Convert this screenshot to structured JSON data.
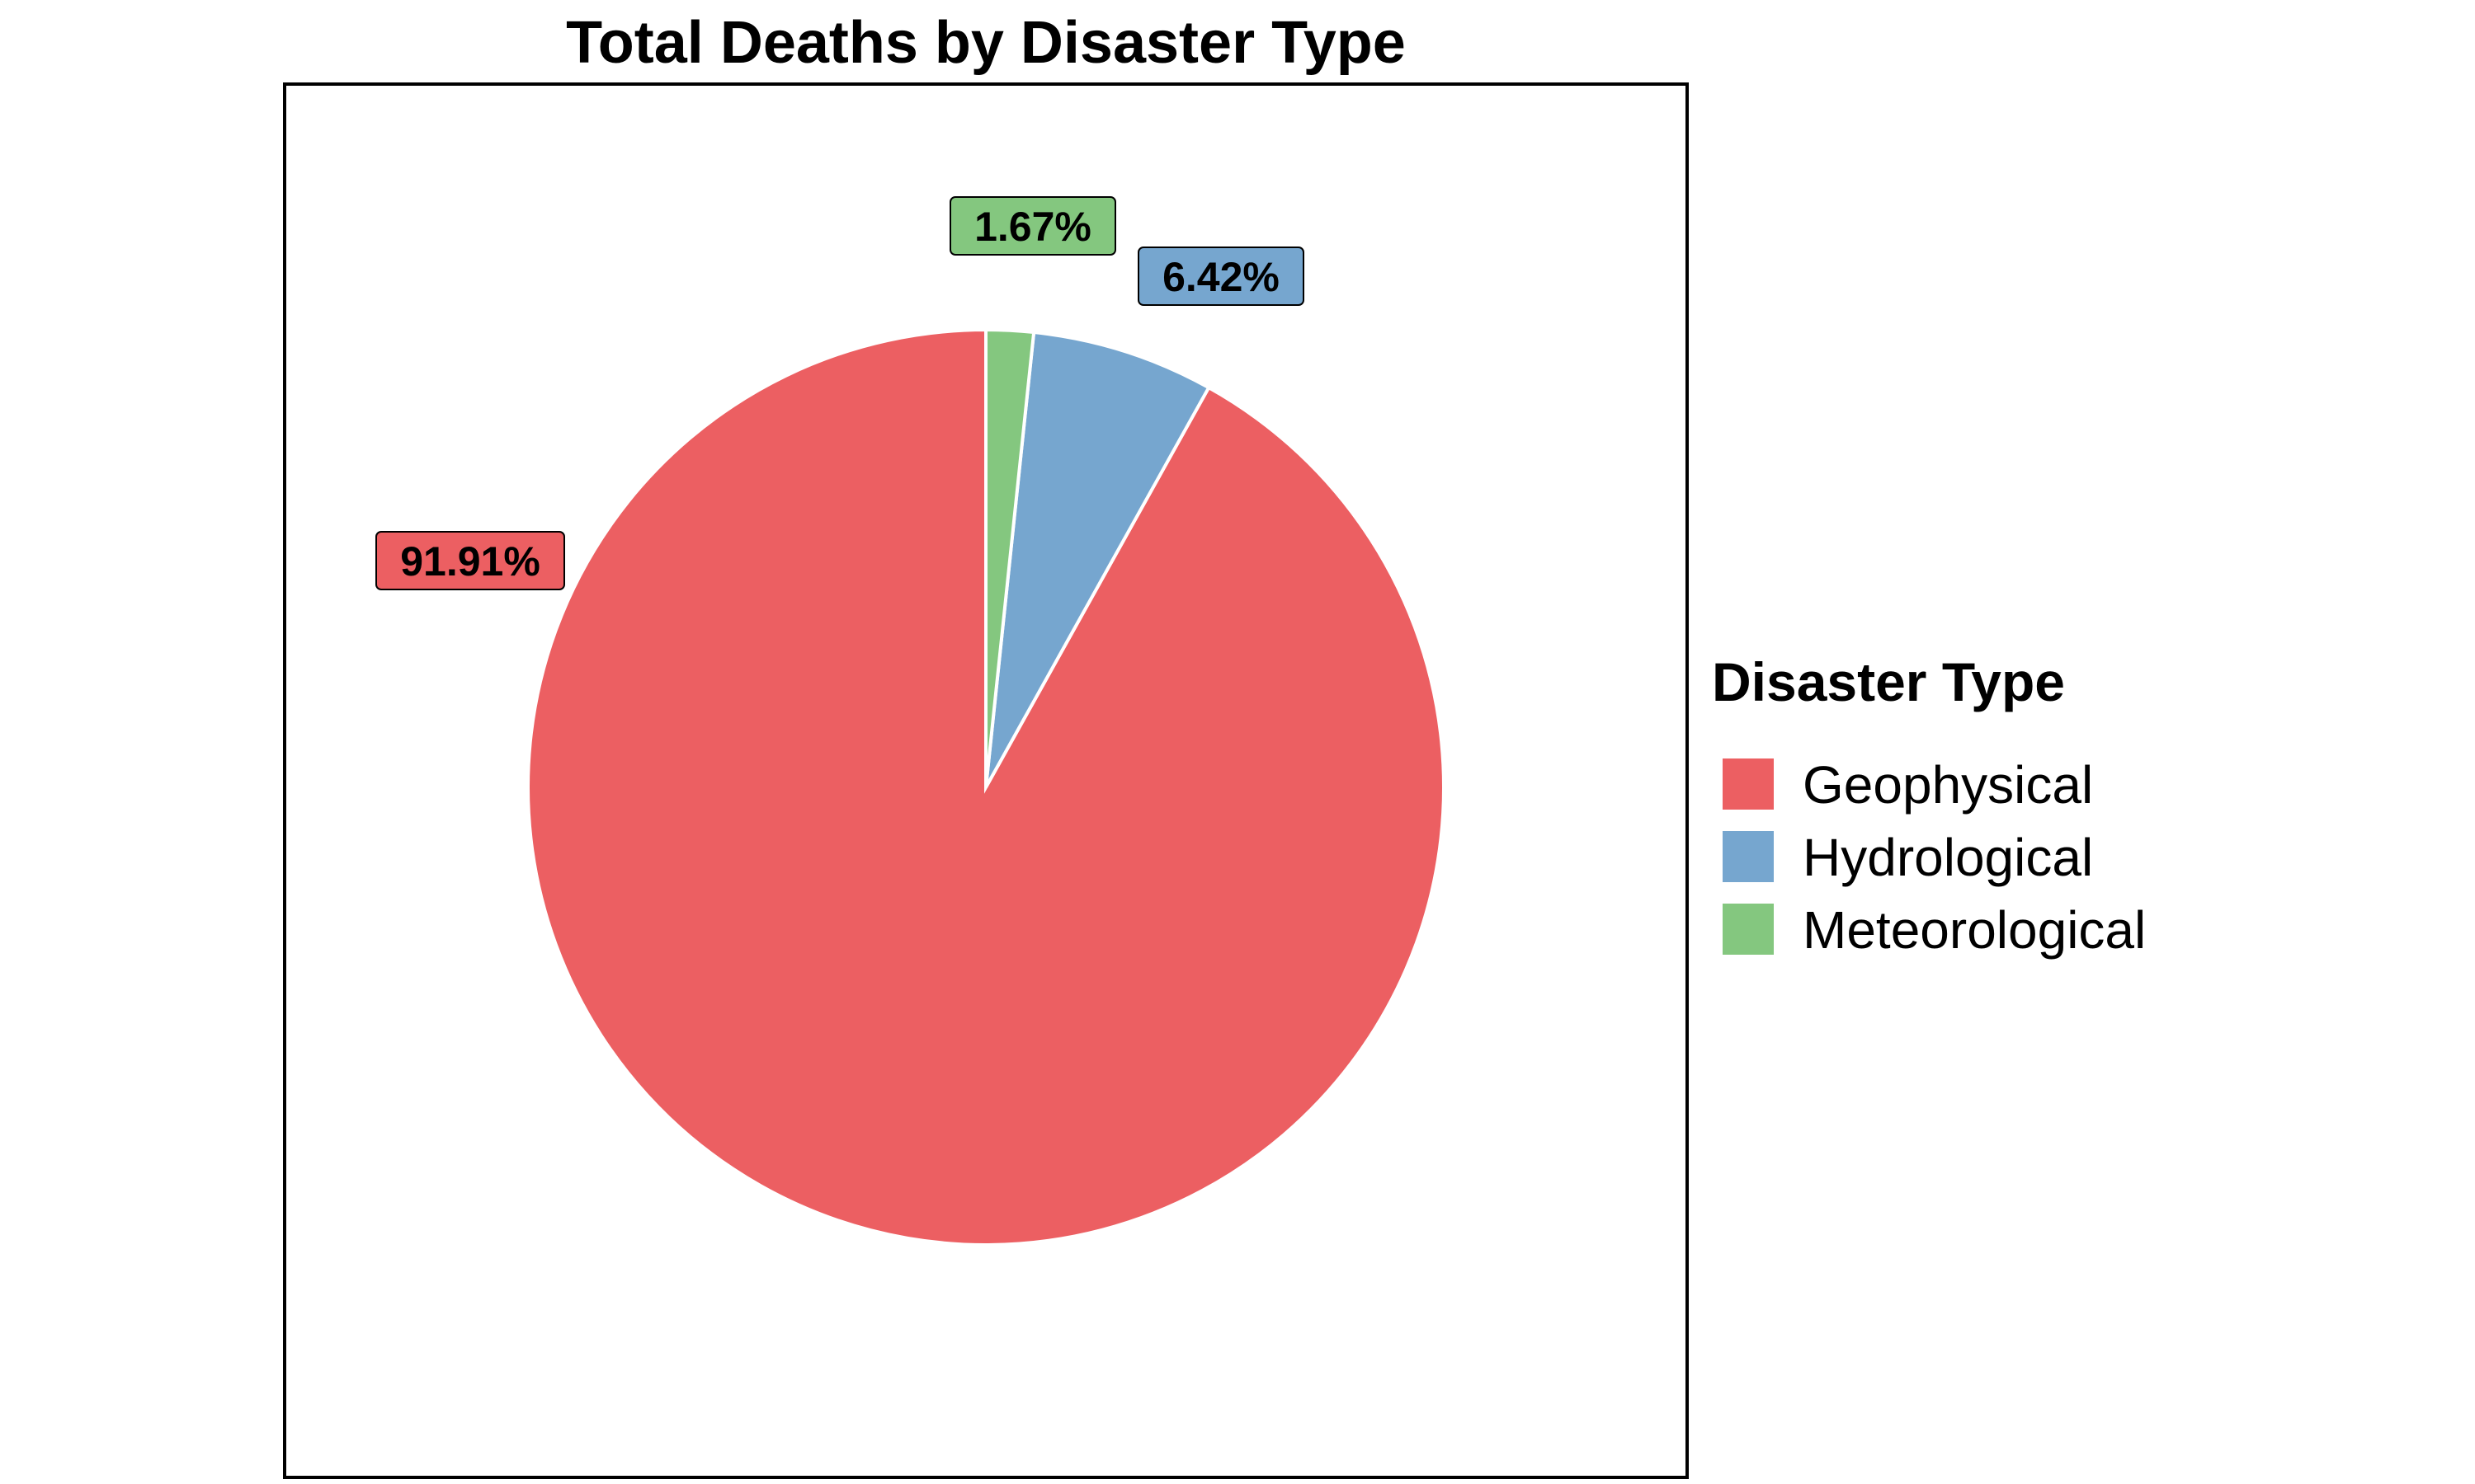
{
  "chart_data": {
    "type": "pie",
    "title": "Total Deaths by Disaster Type",
    "categories": [
      "Geophysical",
      "Hydrological",
      "Meteorological"
    ],
    "values": [
      91.91,
      6.42,
      1.67
    ],
    "labels": [
      "91.91%",
      "6.42%",
      "1.67%"
    ],
    "colors": [
      "#ec5f62",
      "#76a6cf",
      "#84c77f"
    ],
    "legend": {
      "title": "Disaster Type",
      "placement": "right",
      "entries": [
        "Geophysical",
        "Hydrological",
        "Meteorological"
      ]
    },
    "start_angle": "12 o'clock",
    "direction": "counterclockwise"
  }
}
